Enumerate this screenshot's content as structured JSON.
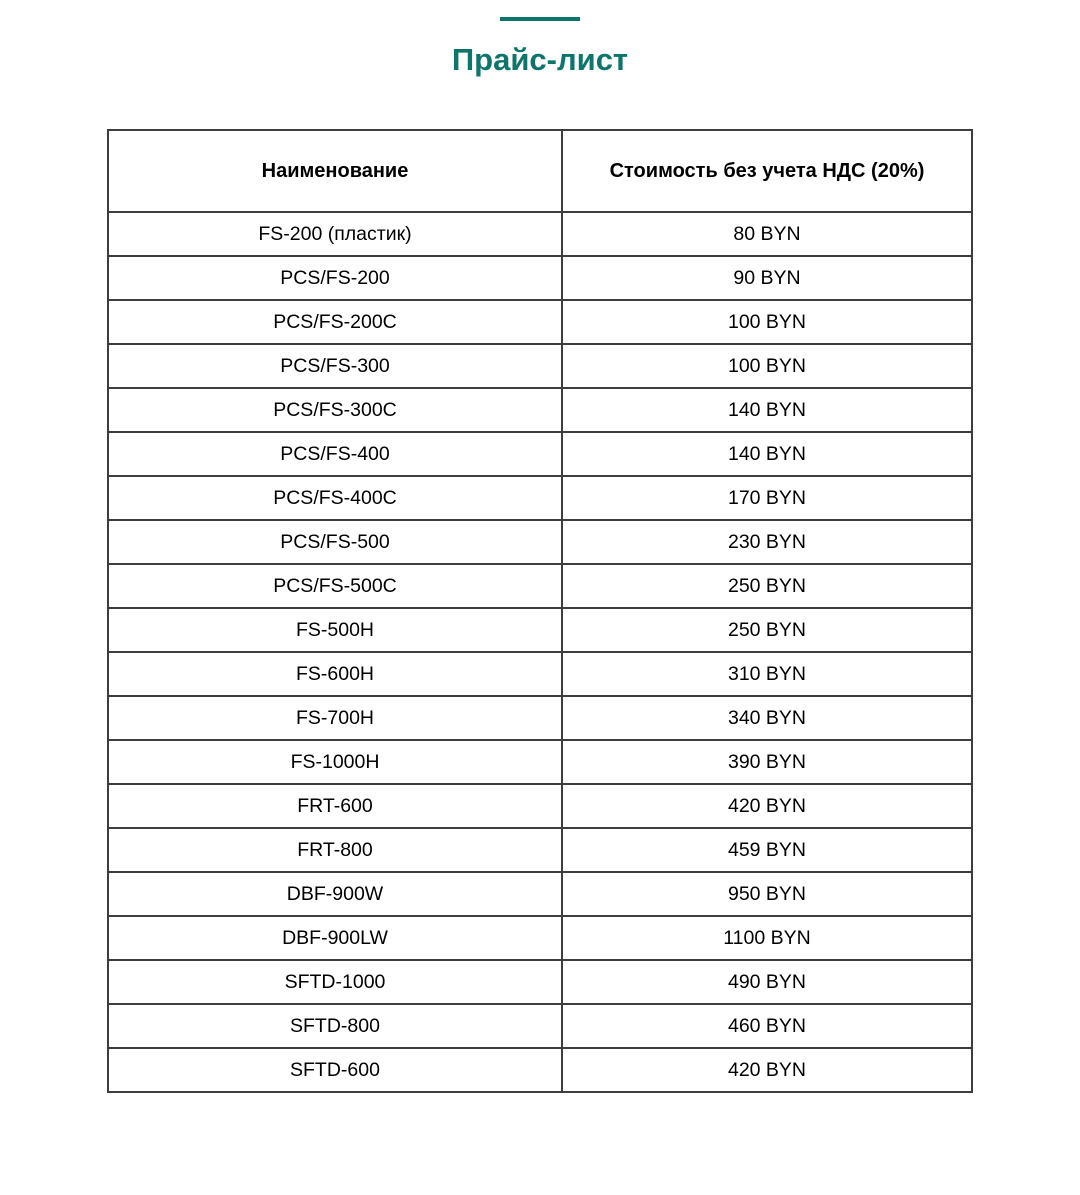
{
  "page": {
    "title": "Прайс-лист"
  },
  "colors": {
    "accent": "#0e756b",
    "table_border": "#3d3d3d",
    "text": "#000000",
    "background": "#ffffff"
  },
  "table": {
    "headers": [
      "Наименование",
      "Стоимость без учета НДС (20%)"
    ],
    "rows": [
      [
        "FS-200 (пластик)",
        "80 BYN"
      ],
      [
        "PCS/FS-200",
        "90 BYN"
      ],
      [
        "PCS/FS-200C",
        "100 BYN"
      ],
      [
        "PCS/FS-300",
        "100 BYN"
      ],
      [
        "PCS/FS-300C",
        "140 BYN"
      ],
      [
        "PCS/FS-400",
        "140 BYN"
      ],
      [
        "PCS/FS-400C",
        "170 BYN"
      ],
      [
        "PCS/FS-500",
        "230 BYN"
      ],
      [
        "PCS/FS-500C",
        "250 BYN"
      ],
      [
        "FS-500H",
        "250 BYN"
      ],
      [
        "FS-600H",
        "310 BYN"
      ],
      [
        "FS-700H",
        "340 BYN"
      ],
      [
        "FS-1000H",
        "390 BYN"
      ],
      [
        "FRT-600",
        "420 BYN"
      ],
      [
        "FRT-800",
        "459 BYN"
      ],
      [
        "DBF-900W",
        "950 BYN"
      ],
      [
        "DBF-900LW",
        "1100 BYN"
      ],
      [
        "SFTD-1000",
        "490 BYN"
      ],
      [
        "SFTD-800",
        "460 BYN"
      ],
      [
        "SFTD-600",
        "420 BYN"
      ]
    ]
  }
}
